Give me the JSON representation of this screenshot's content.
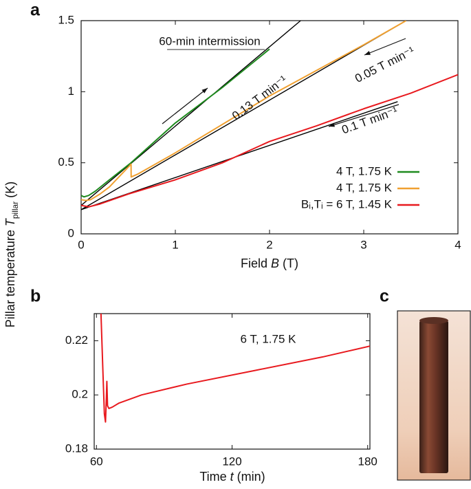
{
  "chart_data": [
    {
      "type": "line",
      "panel_label": "a",
      "x_label": {
        "text": "Field ",
        "var": "B",
        "unit": " (T)"
      },
      "y_label": {
        "text": "Pillar temperature ",
        "var": "T",
        "sub": "pillar",
        "unit": " (K)"
      },
      "xlim": [
        0,
        4
      ],
      "ylim": [
        0,
        1.5
      ],
      "xticks": [
        0,
        1,
        2,
        3,
        4
      ],
      "yticks": [
        0,
        0.5,
        1,
        1.5
      ],
      "legend": "lower right",
      "series": [
        {
          "name": "4 T, 1.75 K",
          "color": "#1e8a1e",
          "x": [
            0,
            0.03,
            0.08,
            0.15,
            0.3,
            0.53,
            1,
            1.5,
            2
          ],
          "values": [
            0.27,
            0.26,
            0.27,
            0.3,
            0.38,
            0.5,
            0.78,
            1.03,
            1.3
          ]
        },
        {
          "name": "4 T, 1.75 K",
          "color": "#f0a030",
          "x": [
            0,
            0.05,
            0.1,
            0.2,
            0.3,
            0.53,
            0.531,
            0.6,
            1,
            2,
            3,
            3.45
          ],
          "values": [
            0.24,
            0.235,
            0.24,
            0.28,
            0.33,
            0.49,
            0.4,
            0.42,
            0.57,
            0.97,
            1.33,
            1.5
          ]
        },
        {
          "name": "Bᵢ,Tᵢ = 6 T, 1.45 K",
          "color": "#e8191e",
          "x": [
            0,
            0.08,
            0.2,
            0.5,
            1,
            1.5,
            2,
            2.5,
            3,
            3.5,
            4
          ],
          "values": [
            0.2,
            0.19,
            0.21,
            0.28,
            0.38,
            0.5,
            0.65,
            0.76,
            0.88,
            0.99,
            1.12
          ]
        }
      ],
      "fit_lines": [
        {
          "color": "#000000",
          "x": [
            0,
            2.33
          ],
          "values": [
            0.2,
            1.5
          ]
        },
        {
          "color": "#000000",
          "x": [
            0,
            3.45
          ],
          "values": [
            0.17,
            1.5
          ]
        },
        {
          "color": "#000000",
          "x": [
            0,
            3.36
          ],
          "values": [
            0.17,
            0.93
          ]
        }
      ],
      "annotations": [
        "60-min intermission",
        "0.13 T min⁻¹",
        "0.05 T min⁻¹",
        "0.1 T min⁻¹"
      ]
    },
    {
      "type": "line",
      "panel_label": "b",
      "x_label": {
        "text": "Time ",
        "var": "t",
        "unit": " (min)"
      },
      "xlim": [
        59,
        181
      ],
      "ylim": [
        0.18,
        0.23
      ],
      "xticks": [
        60,
        120,
        180
      ],
      "yticks": [
        0.18,
        0.2,
        0.22
      ],
      "series": [
        {
          "color": "#e8191e",
          "x": [
            62,
            62.8,
            63.5,
            64,
            64.3,
            64.6,
            64.9,
            65.5,
            67,
            70,
            80,
            100,
            130,
            160,
            181
          ],
          "values": [
            0.23,
            0.21,
            0.193,
            0.19,
            0.197,
            0.205,
            0.196,
            0.195,
            0.1955,
            0.197,
            0.2,
            0.204,
            0.209,
            0.214,
            0.218
          ]
        }
      ],
      "annotations": [
        "6 T, 1.75 K"
      ]
    }
  ],
  "photo_panel": {
    "label": "c"
  }
}
